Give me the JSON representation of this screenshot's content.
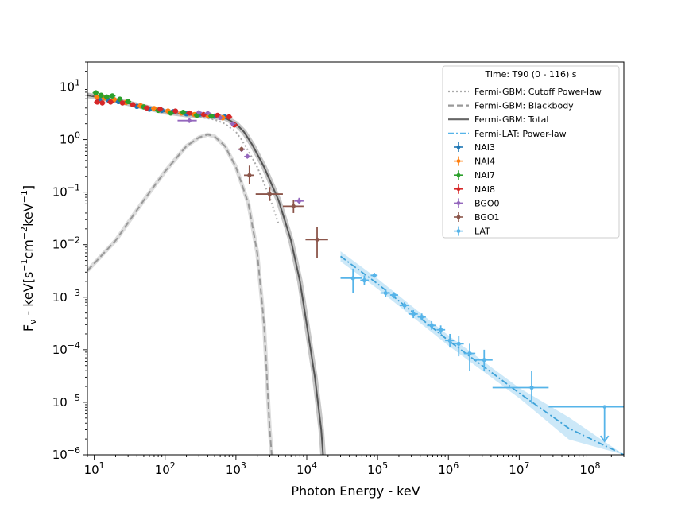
{
  "chart_data": {
    "type": "scatter",
    "xscale": "log",
    "yscale": "log",
    "xlim": [
      8,
      300000000
    ],
    "ylim": [
      1e-06,
      30
    ],
    "xlabel": "Photon Energy - keV",
    "ylabel": "F_ν - keV[s^-1 cm^-2 keV^-1]",
    "ylabel_parts": {
      "a": "F",
      "b": "ν",
      "c": " - keV[s",
      "d": "−1",
      "e": "cm",
      "f": "−2",
      "g": "keV",
      "h": "−1",
      "i": "]"
    },
    "x_ticks": [
      {
        "value": 10,
        "base": "10",
        "exp": "1"
      },
      {
        "value": 100,
        "base": "10",
        "exp": "2"
      },
      {
        "value": 1000,
        "base": "10",
        "exp": "3"
      },
      {
        "value": 10000,
        "base": "10",
        "exp": "4"
      },
      {
        "value": 100000,
        "base": "10",
        "exp": "5"
      },
      {
        "value": 1000000,
        "base": "10",
        "exp": "6"
      },
      {
        "value": 10000000,
        "base": "10",
        "exp": "7"
      },
      {
        "value": 100000000,
        "base": "10",
        "exp": "8"
      }
    ],
    "y_ticks": [
      {
        "value": 10,
        "base": "10",
        "exp": "1"
      },
      {
        "value": 1,
        "base": "10",
        "exp": "0"
      },
      {
        "value": 0.1,
        "base": "10",
        "exp": "−1"
      },
      {
        "value": 0.01,
        "base": "10",
        "exp": "−2"
      },
      {
        "value": 0.001,
        "base": "10",
        "exp": "−3"
      },
      {
        "value": 0.0001,
        "base": "10",
        "exp": "−4"
      },
      {
        "value": 1e-05,
        "base": "10",
        "exp": "−5"
      },
      {
        "value": 1e-06,
        "base": "10",
        "exp": "−6"
      }
    ],
    "legend": {
      "title": "Time: T90 (0 - 116) s",
      "location": "top-right",
      "lines": [
        {
          "label": "Fermi-GBM: Cutoff Power-law",
          "style": "dotted",
          "color": "#aaaaaa"
        },
        {
          "label": "Fermi-GBM: Blackbody",
          "style": "dashed",
          "color": "#999999"
        },
        {
          "label": "Fermi-GBM: Total",
          "style": "solid",
          "color": "#666666"
        },
        {
          "label": "Fermi-LAT: Power-law",
          "style": "dashdot",
          "color": "#56b4e9"
        }
      ],
      "markers": [
        {
          "label": "NAI3",
          "color": "#1f77b4"
        },
        {
          "label": "NAI4",
          "color": "#ff7f0e"
        },
        {
          "label": "NAI7",
          "color": "#2ca02c"
        },
        {
          "label": "NAI8",
          "color": "#d62728"
        },
        {
          "label": "BGO0",
          "color": "#9467bd"
        },
        {
          "label": "BGO1",
          "color": "#8c564b"
        },
        {
          "label": "LAT",
          "color": "#56b4e9"
        }
      ]
    },
    "models": {
      "cutoff_powerlaw": [
        [
          8,
          7.5
        ],
        [
          10,
          6.8
        ],
        [
          20,
          5.2
        ],
        [
          50,
          4.0
        ],
        [
          100,
          3.3
        ],
        [
          200,
          2.9
        ],
        [
          300,
          2.7
        ],
        [
          500,
          2.4
        ],
        [
          700,
          2.0
        ],
        [
          1000,
          1.4
        ],
        [
          1200,
          1.0
        ],
        [
          1500,
          0.6
        ],
        [
          2000,
          0.3
        ],
        [
          3000,
          0.08
        ],
        [
          4000,
          0.025
        ]
      ],
      "blackbody": [
        [
          8,
          0.0032
        ],
        [
          20,
          0.012
        ],
        [
          50,
          0.07
        ],
        [
          100,
          0.25
        ],
        [
          200,
          0.75
        ],
        [
          300,
          1.1
        ],
        [
          400,
          1.25
        ],
        [
          500,
          1.15
        ],
        [
          700,
          0.75
        ],
        [
          1000,
          0.3
        ],
        [
          1500,
          0.06
        ],
        [
          2000,
          0.007
        ],
        [
          2500,
          0.0003
        ],
        [
          3000,
          3e-06
        ],
        [
          3200,
          1e-06
        ]
      ],
      "total": [
        [
          8,
          7.0
        ],
        [
          20,
          5.6
        ],
        [
          50,
          4.2
        ],
        [
          100,
          3.4
        ],
        [
          200,
          3.0
        ],
        [
          400,
          2.8
        ],
        [
          700,
          2.6
        ],
        [
          1000,
          2.0
        ],
        [
          1300,
          1.4
        ],
        [
          1700,
          0.8
        ],
        [
          2500,
          0.3
        ],
        [
          4000,
          0.07
        ],
        [
          6000,
          0.012
        ],
        [
          8000,
          0.002
        ],
        [
          10000,
          0.0003
        ],
        [
          13000,
          3e-05
        ],
        [
          16000,
          3e-06
        ],
        [
          17000,
          1e-06
        ]
      ],
      "lat_powerlaw": [
        [
          30000,
          0.006
        ],
        [
          100000,
          0.0018
        ],
        [
          1000000,
          0.00015
        ],
        [
          10000000,
          1.5e-05
        ],
        [
          50000000,
          3.2e-06
        ],
        [
          300000000,
          6e-07
        ]
      ],
      "lat_band_width_factor": 1.25
    },
    "series": [
      {
        "name": "NAI3",
        "color": "#1f77b4",
        "points": [
          [
            12,
            6.0
          ],
          [
            16,
            5.6
          ],
          [
            22,
            5.3
          ],
          [
            40,
            4.3
          ],
          [
            60,
            3.8
          ],
          [
            90,
            3.6
          ],
          [
            130,
            3.4
          ],
          [
            200,
            3.1
          ],
          [
            300,
            3.0
          ],
          [
            500,
            2.8
          ],
          [
            700,
            2.7
          ]
        ]
      },
      {
        "name": "NAI4",
        "color": "#ff7f0e",
        "points": [
          [
            11,
            6.5
          ],
          [
            14,
            6.2
          ],
          [
            19,
            5.8
          ],
          [
            28,
            5.1
          ],
          [
            45,
            4.4
          ],
          [
            70,
            3.9
          ],
          [
            110,
            3.5
          ],
          [
            170,
            3.2
          ],
          [
            260,
            3.0
          ],
          [
            400,
            2.9
          ],
          [
            650,
            2.6
          ]
        ]
      },
      {
        "name": "NAI7",
        "color": "#2ca02c",
        "points": [
          [
            10.5,
            7.8
          ],
          [
            12.5,
            7.0
          ],
          [
            15,
            6.5
          ],
          [
            18,
            6.8
          ],
          [
            23,
            5.9
          ],
          [
            30,
            5.3
          ],
          [
            50,
            4.2
          ],
          [
            80,
            3.6
          ],
          [
            120,
            3.2
          ],
          [
            180,
            3.3
          ],
          [
            280,
            2.9
          ],
          [
            450,
            2.8
          ]
        ]
      },
      {
        "name": "NAI8",
        "color": "#d62728",
        "points": [
          [
            11,
            5.2
          ],
          [
            13,
            5.0
          ],
          [
            17,
            5.2
          ],
          [
            25,
            5.0
          ],
          [
            35,
            4.6
          ],
          [
            55,
            4.0
          ],
          [
            85,
            3.8
          ],
          [
            140,
            3.5
          ],
          [
            220,
            3.2
          ],
          [
            350,
            3.0
          ],
          [
            550,
            2.9
          ],
          [
            800,
            2.7
          ],
          [
            950,
            1.9
          ]
        ]
      },
      {
        "name": "BGO0",
        "color": "#9467bd",
        "points": [
          [
            220,
            2.3
          ],
          [
            300,
            3.3
          ],
          [
            400,
            3.2
          ],
          [
            600,
            2.6
          ],
          [
            900,
            2.0
          ],
          [
            1200,
            0.65
          ],
          [
            1450,
            0.48
          ],
          [
            7800,
            0.068
          ]
        ]
      },
      {
        "name": "BGO1",
        "color": "#8c564b",
        "points": [
          [
            1200,
            0.66
          ],
          [
            1550,
            0.21
          ],
          [
            3000,
            0.092
          ],
          [
            6500,
            0.054
          ],
          [
            14000,
            0.0125
          ]
        ]
      },
      {
        "name": "LAT",
        "color": "#56b4e9",
        "points": [
          [
            45000,
            0.0023
          ],
          [
            65000,
            0.0021
          ],
          [
            90000,
            0.0026
          ],
          [
            130000,
            0.0012
          ],
          [
            170000,
            0.0011
          ],
          [
            240000,
            0.0007
          ],
          [
            320000,
            0.00048
          ],
          [
            420000,
            0.00042
          ],
          [
            580000,
            0.00029
          ],
          [
            780000,
            0.00024
          ],
          [
            1050000,
            0.00015
          ],
          [
            1400000,
            0.00013
          ],
          [
            2000000,
            8.5e-05
          ],
          [
            3200000,
            6.4e-05
          ],
          [
            15000000,
            1.9e-05
          ]
        ]
      }
    ],
    "error_bars": [
      {
        "series": "BGO1",
        "x": 1550,
        "y": 0.21,
        "xlo": 1300,
        "xhi": 1800,
        "ylo": 0.14,
        "yhi": 0.32
      },
      {
        "series": "BGO1",
        "x": 3000,
        "y": 0.092,
        "xlo": 1900,
        "xhi": 4600,
        "ylo": 0.068,
        "yhi": 0.125
      },
      {
        "series": "BGO1",
        "x": 6500,
        "y": 0.054,
        "xlo": 4600,
        "xhi": 9000,
        "ylo": 0.04,
        "yhi": 0.072
      },
      {
        "series": "BGO1",
        "x": 14000,
        "y": 0.0125,
        "xlo": 9600,
        "xhi": 20000,
        "ylo": 0.0055,
        "yhi": 0.022
      },
      {
        "series": "BGO0",
        "x": 7800,
        "y": 0.068,
        "xlo": 6700,
        "xhi": 9000,
        "ylo": 0.06,
        "yhi": 0.078
      },
      {
        "series": "BGO0",
        "x": 220,
        "y": 2.3,
        "xlo": 150,
        "xhi": 280,
        "ylo": 2.1,
        "yhi": 2.5
      },
      {
        "series": "LAT",
        "x": 45000,
        "y": 0.0023,
        "xlo": 30000,
        "xhi": 60000,
        "ylo": 0.0012,
        "yhi": 0.0035
      },
      {
        "series": "LAT",
        "x": 65000,
        "y": 0.0021,
        "xlo": 57000,
        "xhi": 75000,
        "ylo": 0.0017,
        "yhi": 0.0026
      },
      {
        "series": "LAT",
        "x": 90000,
        "y": 0.0026,
        "xlo": 80000,
        "xhi": 100000,
        "ylo": 0.0024,
        "yhi": 0.0029
      },
      {
        "series": "LAT",
        "x": 130000,
        "y": 0.0012,
        "xlo": 110000,
        "xhi": 150000,
        "ylo": 0.001,
        "yhi": 0.0014
      },
      {
        "series": "LAT",
        "x": 170000,
        "y": 0.0011,
        "xlo": 150000,
        "xhi": 195000,
        "ylo": 0.00095,
        "yhi": 0.00125
      },
      {
        "series": "LAT",
        "x": 240000,
        "y": 0.0007,
        "xlo": 205000,
        "xhi": 280000,
        "ylo": 0.0006,
        "yhi": 0.0008
      },
      {
        "series": "LAT",
        "x": 320000,
        "y": 0.00048,
        "xlo": 280000,
        "xhi": 370000,
        "ylo": 0.0004,
        "yhi": 0.00057
      },
      {
        "series": "LAT",
        "x": 420000,
        "y": 0.00042,
        "xlo": 370000,
        "xhi": 480000,
        "ylo": 0.00036,
        "yhi": 0.00049
      },
      {
        "series": "LAT",
        "x": 580000,
        "y": 0.00029,
        "xlo": 500000,
        "xhi": 670000,
        "ylo": 0.00024,
        "yhi": 0.00035
      },
      {
        "series": "LAT",
        "x": 780000,
        "y": 0.00024,
        "xlo": 680000,
        "xhi": 900000,
        "ylo": 0.0002,
        "yhi": 0.00029
      },
      {
        "series": "LAT",
        "x": 1050000,
        "y": 0.00015,
        "xlo": 900000,
        "xhi": 1200000,
        "ylo": 0.00011,
        "yhi": 0.0002
      },
      {
        "series": "LAT",
        "x": 1400000,
        "y": 0.00013,
        "xlo": 1200000,
        "xhi": 1650000,
        "ylo": 7.5e-05,
        "yhi": 0.00018
      },
      {
        "series": "LAT",
        "x": 2000000,
        "y": 8.5e-05,
        "xlo": 1650000,
        "xhi": 2400000,
        "ylo": 4e-05,
        "yhi": 0.00013
      },
      {
        "series": "LAT",
        "x": 3200000,
        "y": 6.4e-05,
        "xlo": 2400000,
        "xhi": 4200000,
        "ylo": 4e-05,
        "yhi": 0.0001
      },
      {
        "series": "LAT",
        "x": 15000000,
        "y": 1.9e-05,
        "xlo": 4200000,
        "xhi": 26000000,
        "ylo": 9.5e-06,
        "yhi": 4e-05
      }
    ],
    "upper_limits": [
      {
        "series": "LAT",
        "x": 160000000,
        "y": 8.2e-06,
        "xlo": 26000000,
        "xhi": 300000000,
        "arrow_to": 1.8e-06
      }
    ]
  }
}
